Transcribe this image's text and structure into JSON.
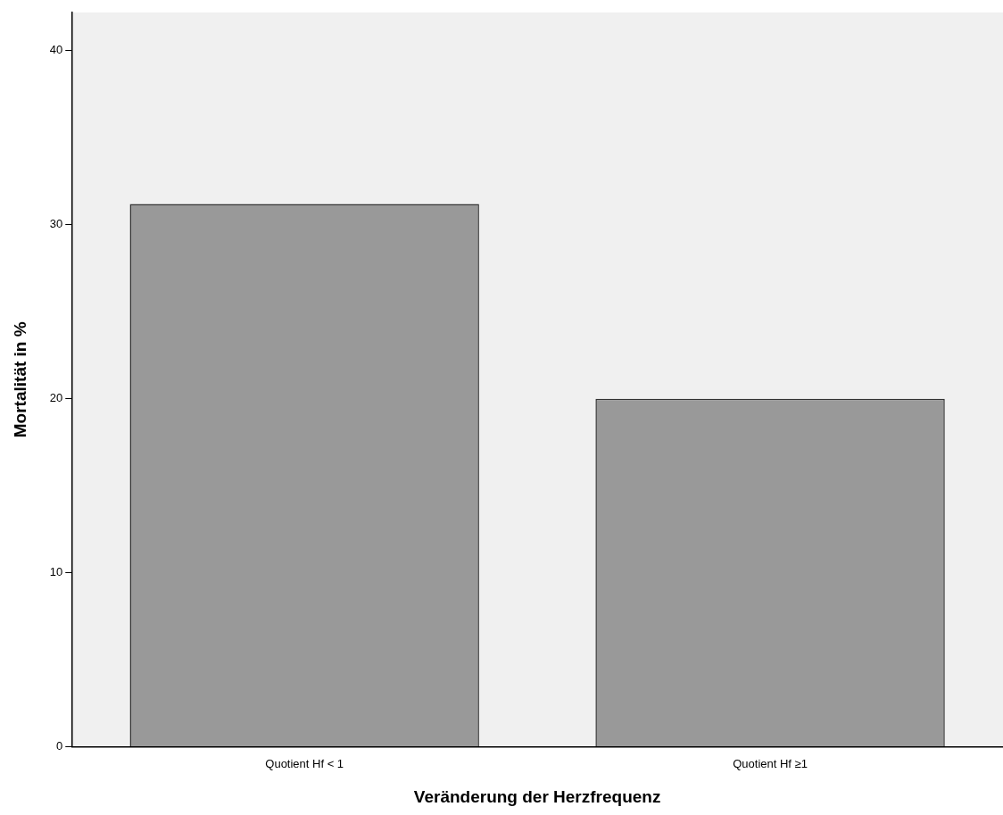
{
  "chart_data": {
    "type": "bar",
    "categories": [
      "Quotient Hf < 1",
      "Quotient Hf ≥1"
    ],
    "values": [
      31.2,
      20.0
    ],
    "color": "#999999",
    "xlabel": "Veränderung der Herzfrequenz",
    "ylabel": "Mortalität in %",
    "ylim": [
      0,
      42.2
    ],
    "yticks": [
      0,
      10,
      20,
      30,
      40
    ],
    "grid": false,
    "legend": false
  }
}
